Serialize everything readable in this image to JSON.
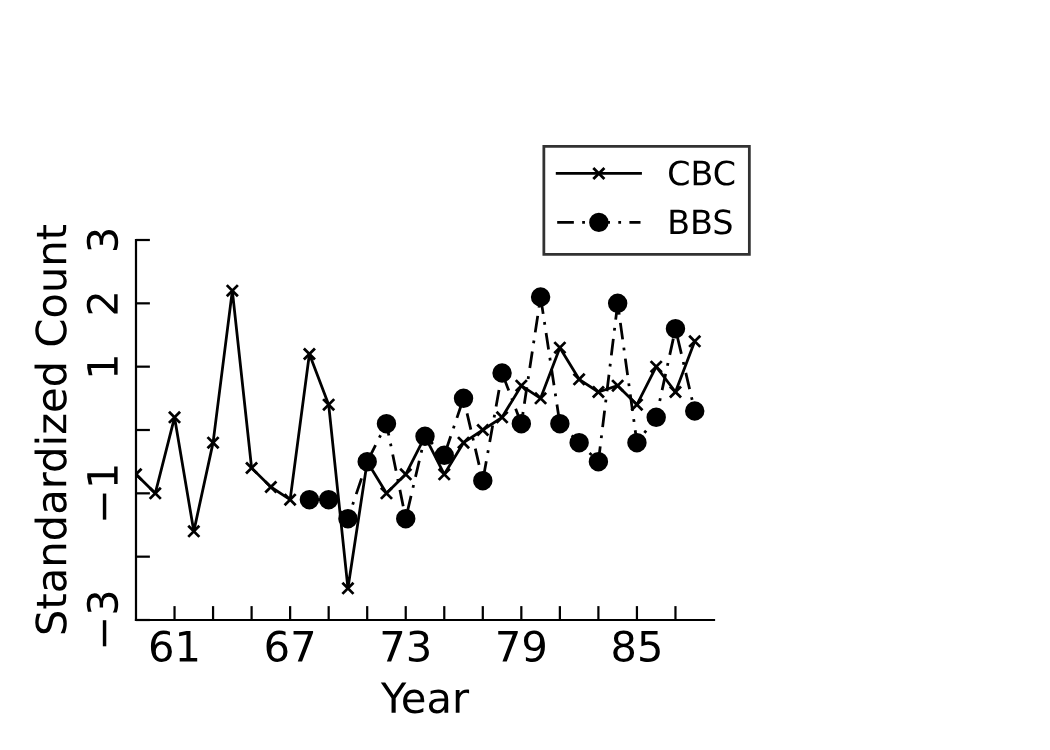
{
  "chart_data": {
    "type": "line",
    "xlabel": "Year",
    "ylabel": "Standardized Count",
    "xlim": [
      59,
      89
    ],
    "xticks": [
      {
        "value": 61,
        "label": "61"
      },
      {
        "value": 63,
        "label": null
      },
      {
        "value": 65,
        "label": null
      },
      {
        "value": 67,
        "label": "67"
      },
      {
        "value": 69,
        "label": null
      },
      {
        "value": 71,
        "label": null
      },
      {
        "value": 73,
        "label": "73"
      },
      {
        "value": 75,
        "label": null
      },
      {
        "value": 77,
        "label": null
      },
      {
        "value": 79,
        "label": "79"
      },
      {
        "value": 81,
        "label": null
      },
      {
        "value": 83,
        "label": null
      },
      {
        "value": 85,
        "label": "85"
      },
      {
        "value": 87,
        "label": null
      }
    ],
    "ylim": [
      -3,
      3
    ],
    "yticks": [
      {
        "value": -3,
        "label": "−3"
      },
      {
        "value": -2,
        "label": null
      },
      {
        "value": -1,
        "label": "−1"
      },
      {
        "value": 0,
        "label": null
      },
      {
        "value": 1,
        "label": "1"
      },
      {
        "value": 2,
        "label": "2"
      },
      {
        "value": 3,
        "label": "3"
      }
    ],
    "grid": false,
    "legend": "top right",
    "series": [
      {
        "name": "CBC",
        "color": "#000000",
        "marker": "cross",
        "line_style": "solid",
        "x": [
          59,
          60,
          61,
          62,
          63,
          64,
          65,
          66,
          67,
          68,
          69,
          70,
          71,
          72,
          73,
          74,
          75,
          76,
          77,
          78,
          79,
          80,
          81,
          82,
          83,
          84,
          85,
          86,
          87,
          88
        ],
        "values": [
          -0.7,
          -1.0,
          0.2,
          -1.6,
          -0.2,
          2.2,
          -0.6,
          -0.9,
          -1.1,
          1.2,
          0.4,
          -2.5,
          -0.5,
          -1.0,
          -0.7,
          -0.1,
          -0.7,
          -0.2,
          0.0,
          0.2,
          0.7,
          0.5,
          1.3,
          0.8,
          0.6,
          0.7,
          0.4,
          1.0,
          0.6,
          1.4
        ]
      },
      {
        "name": "BBS",
        "color": "#000000",
        "marker": "circle",
        "line_style": "dashed",
        "x": [
          68,
          69,
          70,
          71,
          72,
          73,
          74,
          75,
          76,
          77,
          78,
          79,
          80,
          81,
          82,
          83,
          84,
          85,
          86,
          87,
          88
        ],
        "values": [
          -1.1,
          -1.1,
          -1.4,
          -0.5,
          0.1,
          -1.4,
          -0.1,
          -0.4,
          0.5,
          -0.8,
          0.9,
          0.1,
          2.1,
          0.1,
          -0.2,
          -0.5,
          2.0,
          -0.2,
          0.2,
          1.6,
          0.3
        ]
      }
    ]
  }
}
